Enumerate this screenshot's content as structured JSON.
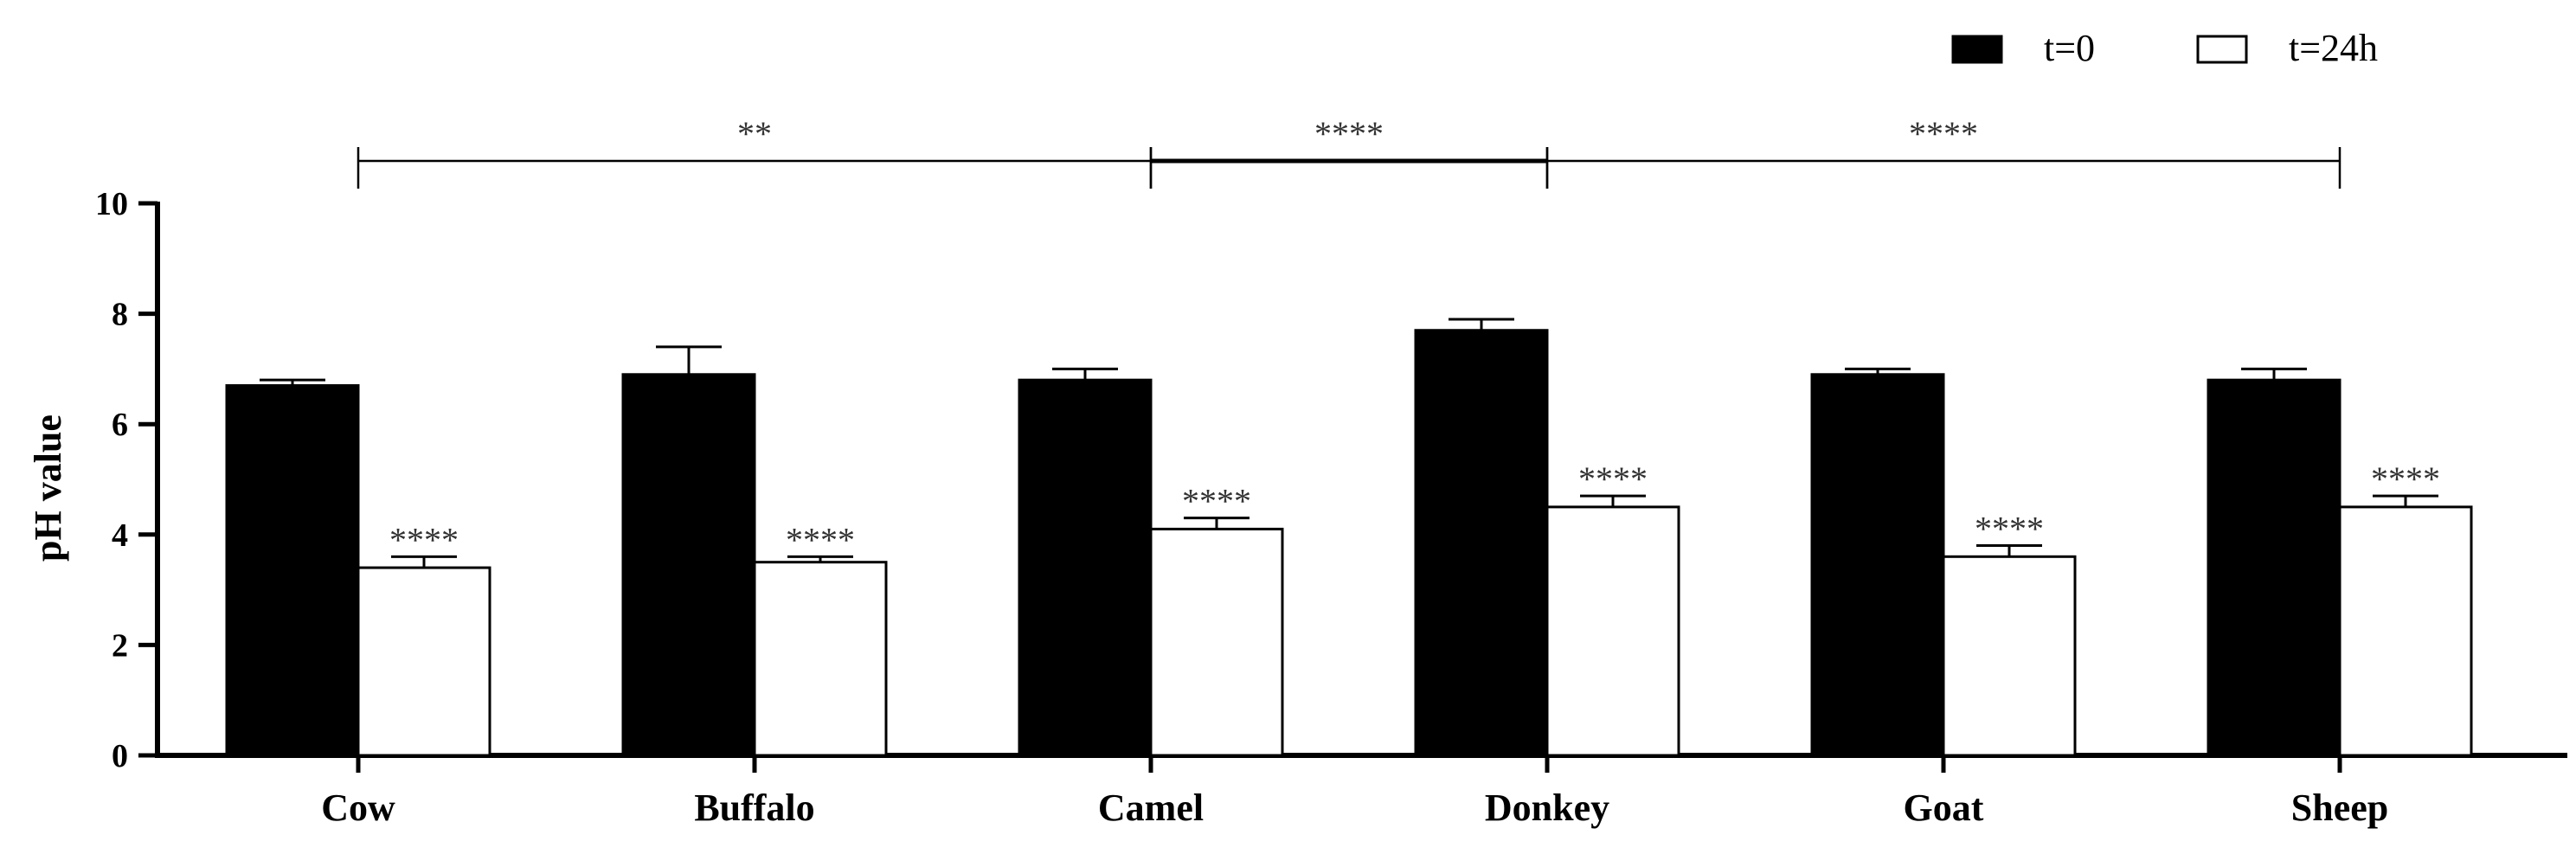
{
  "chart_data": {
    "type": "bar",
    "categories": [
      "Cow",
      "Buffalo",
      "Camel",
      "Donkey",
      "Goat",
      "Sheep"
    ],
    "series": [
      {
        "name": "t=0",
        "values": [
          6.7,
          6.9,
          6.8,
          7.7,
          6.9,
          6.8
        ],
        "errors": [
          0.1,
          0.5,
          0.2,
          0.2,
          0.1,
          0.2
        ],
        "fill": "#000000"
      },
      {
        "name": "t=24h",
        "values": [
          3.4,
          3.5,
          4.1,
          4.5,
          3.6,
          4.5
        ],
        "errors": [
          0.2,
          0.1,
          0.2,
          0.2,
          0.2,
          0.2
        ],
        "fill": "#ffffff",
        "annotations": [
          "****",
          "****",
          "****",
          "****",
          "****",
          "****"
        ]
      }
    ],
    "comparisons": [
      {
        "from": "Cow",
        "to": "Camel",
        "label": "**"
      },
      {
        "from": "Camel",
        "to": "Donkey",
        "label": "****"
      },
      {
        "from": "Donkey",
        "to": "Sheep",
        "label": "****"
      }
    ],
    "ylabel": "pH value",
    "xlabel": "",
    "ylim": [
      0,
      10
    ],
    "yticks": [
      0,
      2,
      4,
      6,
      8,
      10
    ],
    "grid": false,
    "legend_position": "top-right"
  }
}
